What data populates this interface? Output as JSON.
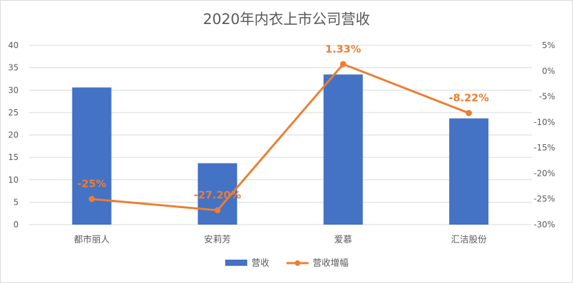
{
  "chart_data": {
    "type": "bar",
    "title": "2020年内衣上市公司营收",
    "categories": [
      "都市丽人",
      "安莉芳",
      "爱慕",
      "汇洁股份"
    ],
    "series": [
      {
        "name": "营收",
        "type": "bar",
        "axis": "left",
        "color": "#4472C4",
        "values": [
          30.6,
          13.7,
          33.5,
          23.7
        ]
      },
      {
        "name": "营收增幅",
        "type": "line",
        "axis": "right",
        "color": "#ED7D31",
        "values": [
          -25,
          -27.2,
          1.33,
          -8.22
        ],
        "data_labels": [
          "-25%",
          "-27.20%",
          "1.33%",
          "-8.22%"
        ]
      }
    ],
    "y_left": {
      "min": 0,
      "max": 40,
      "step": 5,
      "ticks": [
        "0",
        "5",
        "10",
        "15",
        "20",
        "25",
        "30",
        "35",
        "40"
      ]
    },
    "y_right": {
      "min": -30,
      "max": 5,
      "step": 5,
      "ticks": [
        "-30%",
        "-25%",
        "-20%",
        "-15%",
        "-10%",
        "-5%",
        "0%",
        "5%"
      ]
    },
    "grid": true,
    "legend_position": "bottom"
  }
}
